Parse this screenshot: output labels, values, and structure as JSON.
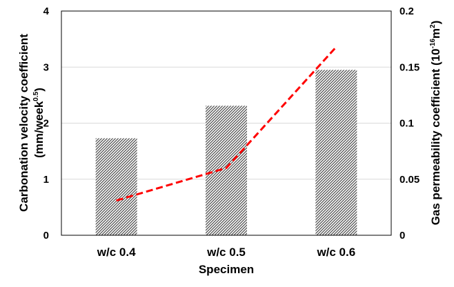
{
  "chart_data": {
    "type": "bar",
    "categories": [
      "w/c 0.4",
      "w/c 0.5",
      "w/c 0.6"
    ],
    "series": [
      {
        "type": "bar",
        "axis": "left",
        "values": [
          1.73,
          2.31,
          2.95
        ],
        "color": "#555555",
        "pattern": "diagonal-hatch"
      },
      {
        "type": "line",
        "axis": "right",
        "values": [
          0.031,
          0.06,
          0.168
        ],
        "color": "#ff0000",
        "style": "dashed"
      }
    ],
    "xlabel": "Specimen",
    "ylabel_left_line1": "Carbonation velocity coefficient",
    "ylabel_left_line2_main": "(mm/week",
    "ylabel_left_line2_sup": "0.5",
    "ylabel_left_line2_end": ")",
    "ylabel_right_main": "Gas permeability coefficient (10",
    "ylabel_right_sup": "-16",
    "ylabel_right_mid": "m",
    "ylabel_right_sup2": "2",
    "ylabel_right_end": ")",
    "ylim_left": [
      0,
      4
    ],
    "yticks_left": [
      "0",
      "1",
      "2",
      "3",
      "4"
    ],
    "ylim_right": [
      0,
      0.2
    ],
    "yticks_right": [
      "0",
      "0.05",
      "0.1",
      "0.15",
      "0.2"
    ],
    "grid": true
  }
}
